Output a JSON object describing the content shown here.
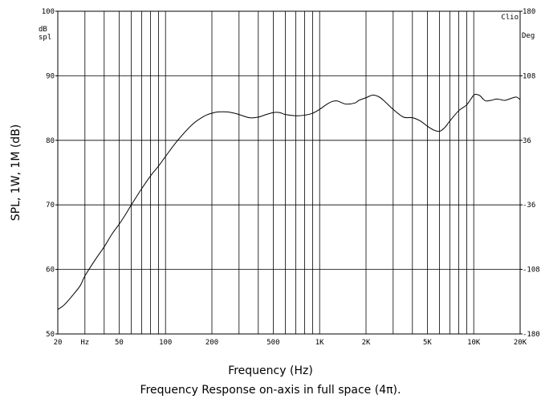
{
  "chart_data": {
    "type": "line",
    "title": "",
    "watermark": "Clio",
    "xlabel": "Frequency (Hz)",
    "ylabel": "SPL, 1W, 1M (dB)",
    "caption": "Frequency Response on-axis in full space (4π).",
    "x_scale": "log",
    "xlim": [
      20,
      20000
    ],
    "ylim": [
      50,
      100
    ],
    "y_unit_label": [
      "dB",
      "spl"
    ],
    "y2_unit_label": "Deg",
    "y2lim": [
      -180,
      180
    ],
    "x_ticks": [
      {
        "value": 20,
        "label": "20"
      },
      {
        "value": 30,
        "label": "Hz"
      },
      {
        "value": 50,
        "label": "50"
      },
      {
        "value": 100,
        "label": "100"
      },
      {
        "value": 200,
        "label": "200"
      },
      {
        "value": 500,
        "label": "500"
      },
      {
        "value": 1000,
        "label": "1K"
      },
      {
        "value": 2000,
        "label": "2K"
      },
      {
        "value": 5000,
        "label": "5K"
      },
      {
        "value": 10000,
        "label": "10K"
      },
      {
        "value": 20000,
        "label": "20K"
      }
    ],
    "y_ticks": [
      {
        "value": 50,
        "label": "50"
      },
      {
        "value": 60,
        "label": "60"
      },
      {
        "value": 70,
        "label": "70"
      },
      {
        "value": 80,
        "label": "80"
      },
      {
        "value": 90,
        "label": "90"
      },
      {
        "value": 100,
        "label": "100"
      }
    ],
    "y2_ticks": [
      {
        "value": 180,
        "label": "180"
      },
      {
        "value": 108,
        "label": "108"
      },
      {
        "value": 36,
        "label": "36"
      },
      {
        "value": -36,
        "label": "-36"
      },
      {
        "value": -108,
        "label": "-108"
      },
      {
        "value": -180,
        "label": "-180"
      }
    ],
    "grid": true,
    "series": [
      {
        "color": "#000000",
        "x": [
          20,
          22,
          25,
          28,
          30,
          35,
          40,
          45,
          50,
          55,
          60,
          70,
          80,
          90,
          100,
          120,
          150,
          180,
          200,
          220,
          250,
          280,
          300,
          350,
          400,
          450,
          500,
          550,
          600,
          700,
          800,
          900,
          1000,
          1100,
          1200,
          1300,
          1400,
          1500,
          1700,
          1800,
          2000,
          2200,
          2400,
          2600,
          3000,
          3500,
          4000,
          4500,
          5000,
          5500,
          6000,
          6500,
          7000,
          8000,
          9000,
          10000,
          10500,
          11000,
          11500,
          12000,
          13000,
          14000,
          15000,
          16000,
          18000,
          19000,
          20000
        ],
        "y": [
          53.8,
          54.5,
          56.0,
          57.5,
          59.0,
          61.5,
          63.5,
          65.5,
          67.0,
          68.5,
          70.0,
          72.5,
          74.5,
          76.0,
          77.5,
          80.0,
          82.5,
          83.8,
          84.2,
          84.4,
          84.4,
          84.2,
          84.0,
          83.5,
          83.6,
          84.0,
          84.3,
          84.3,
          84.0,
          83.8,
          83.9,
          84.2,
          84.8,
          85.5,
          86.0,
          86.1,
          85.8,
          85.6,
          85.8,
          86.2,
          86.6,
          87.0,
          86.8,
          86.2,
          84.8,
          83.6,
          83.5,
          83.0,
          82.2,
          81.6,
          81.4,
          82.0,
          83.0,
          84.6,
          85.5,
          87.0,
          87.1,
          86.9,
          86.4,
          86.1,
          86.2,
          86.4,
          86.3,
          86.2,
          86.6,
          86.7,
          86.3
        ]
      }
    ]
  }
}
